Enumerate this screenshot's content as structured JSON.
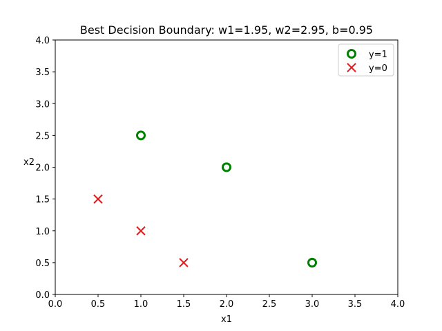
{
  "chart_data": {
    "type": "scatter",
    "title": "Best Decision Boundary: w1=1.95, w2=2.95, b=0.95",
    "xlabel": "x1",
    "ylabel": "x2",
    "xlim": [
      0,
      4
    ],
    "ylim": [
      0,
      4
    ],
    "xticks": [
      "0.0",
      "0.5",
      "1.0",
      "1.5",
      "2.0",
      "2.5",
      "3.0",
      "3.5",
      "4.0"
    ],
    "yticks": [
      "0.0",
      "0.5",
      "1.0",
      "1.5",
      "2.0",
      "2.5",
      "3.0",
      "3.5",
      "4.0"
    ],
    "grid": false,
    "legend_position": "top-right",
    "series": [
      {
        "name": "y=1",
        "marker": "circle-open",
        "color": "#008000",
        "points": [
          {
            "x": 1.0,
            "y": 2.5
          },
          {
            "x": 2.0,
            "y": 2.0
          },
          {
            "x": 3.0,
            "y": 0.5
          }
        ]
      },
      {
        "name": "y=0",
        "marker": "x",
        "color": "#e31a1c",
        "points": [
          {
            "x": 0.5,
            "y": 1.5
          },
          {
            "x": 1.0,
            "y": 1.0
          },
          {
            "x": 1.5,
            "y": 0.5
          }
        ]
      }
    ]
  }
}
